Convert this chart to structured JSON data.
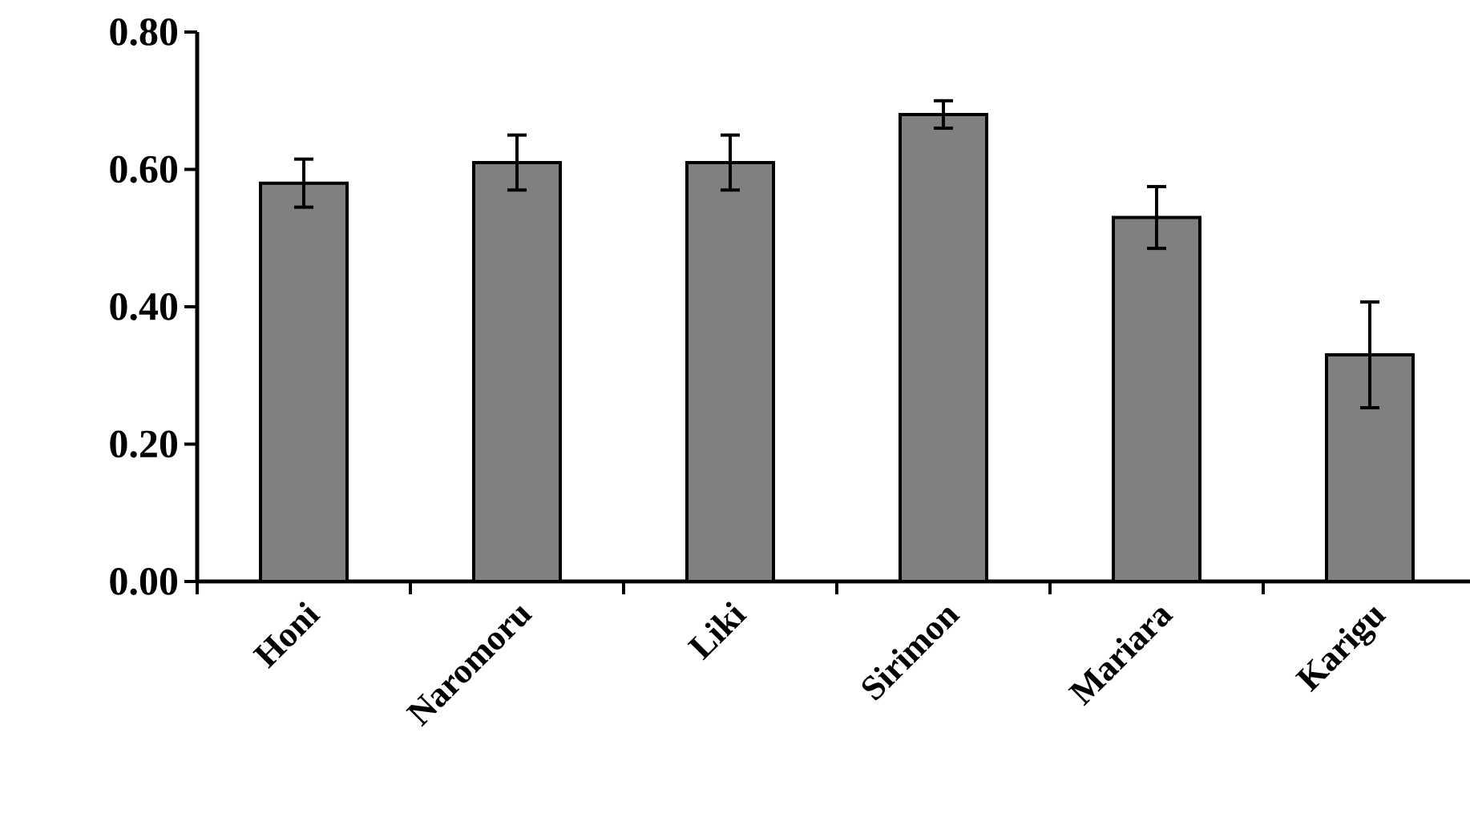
{
  "chart_data": {
    "type": "bar",
    "categories": [
      "Honi",
      "Naromoru",
      "Liki",
      "Sirimon",
      "Mariara",
      "Karigu"
    ],
    "values": [
      0.58,
      0.61,
      0.61,
      0.68,
      0.53,
      0.33
    ],
    "errors": [
      0.035,
      0.04,
      0.04,
      0.02,
      0.045,
      0.077
    ],
    "color": "#808080",
    "ylim": [
      0,
      0.8
    ],
    "yticks": [
      {
        "value": 0,
        "label": "0.00"
      },
      {
        "value": 0.2,
        "label": "0.20"
      },
      {
        "value": 0.4,
        "label": "0.40"
      },
      {
        "value": 0.6,
        "label": "0.60"
      },
      {
        "value": 0.8,
        "label": "0.80"
      }
    ],
    "grid": false
  }
}
